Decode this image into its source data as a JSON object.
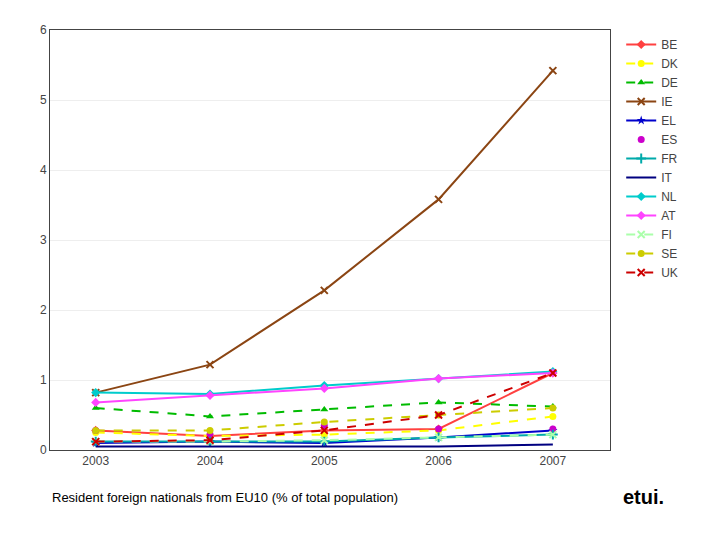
{
  "chart_data": {
    "type": "line",
    "x": [
      2003,
      2004,
      2005,
      2006,
      2007
    ],
    "series": [
      {
        "name": "BE",
        "color": "#FF4040",
        "marker": "diamond",
        "line_style": "solid",
        "values": [
          0.28,
          0.2,
          0.28,
          0.3,
          1.1
        ]
      },
      {
        "name": "DK",
        "color": "#FFFF00",
        "marker": "circle",
        "line_style": "dashed",
        "values": [
          0.25,
          0.2,
          0.22,
          0.28,
          0.48
        ]
      },
      {
        "name": "DE",
        "color": "#00BB00",
        "marker": "triangle-up",
        "line_style": "dashed",
        "values": [
          0.6,
          0.48,
          0.58,
          0.68,
          0.62
        ]
      },
      {
        "name": "IE",
        "color": "#8B4513",
        "marker": "x",
        "line_style": "solid",
        "values": [
          0.82,
          1.22,
          2.28,
          3.58,
          5.42
        ]
      },
      {
        "name": "EL",
        "color": "#0000CC",
        "marker": "star",
        "line_style": "solid",
        "values": [
          0.1,
          0.12,
          0.1,
          0.18,
          0.28
        ]
      },
      {
        "name": "ES",
        "color": "#CC00CC",
        "marker": "circle",
        "line_style": "none",
        "values": [
          0.28,
          0.22,
          0.35,
          0.3,
          0.3
        ]
      },
      {
        "name": "FR",
        "color": "#00AAAA",
        "marker": "plus",
        "line_style": "solid",
        "values": [
          0.12,
          0.12,
          0.12,
          0.18,
          0.22
        ]
      },
      {
        "name": "IT",
        "color": "#000080",
        "marker": "none",
        "line_style": "solid",
        "values": [
          0.05,
          0.05,
          0.05,
          0.05,
          0.08
        ]
      },
      {
        "name": "NL",
        "color": "#00CCCC",
        "marker": "diamond",
        "line_style": "solid",
        "values": [
          0.82,
          0.8,
          0.92,
          1.02,
          1.12
        ]
      },
      {
        "name": "AT",
        "color": "#FF44FF",
        "marker": "diamond",
        "line_style": "solid",
        "values": [
          0.68,
          0.78,
          0.88,
          1.02,
          1.1
        ]
      },
      {
        "name": "FI",
        "color": "#AAFFAA",
        "marker": "x",
        "line_style": "dashed",
        "values": [
          0.12,
          0.12,
          0.14,
          0.18,
          0.22
        ]
      },
      {
        "name": "SE",
        "color": "#CCCC00",
        "marker": "circle",
        "line_style": "dashed",
        "values": [
          0.28,
          0.28,
          0.4,
          0.5,
          0.6
        ]
      },
      {
        "name": "UK",
        "color": "#CC0000",
        "marker": "x",
        "line_style": "dashed",
        "values": [
          0.12,
          0.14,
          0.28,
          0.5,
          1.1
        ]
      }
    ],
    "xlim": [
      2002.6,
      2007.5
    ],
    "xticks": [
      2003,
      2004,
      2005,
      2006,
      2007
    ],
    "ylim": [
      0,
      6
    ],
    "yticks": [
      0,
      1,
      2,
      3,
      4,
      5,
      6
    ],
    "grid": "y",
    "legend": "right",
    "annotations": [
      "Resident foreign nationals from EU10 (% of total population)",
      "etui."
    ]
  }
}
